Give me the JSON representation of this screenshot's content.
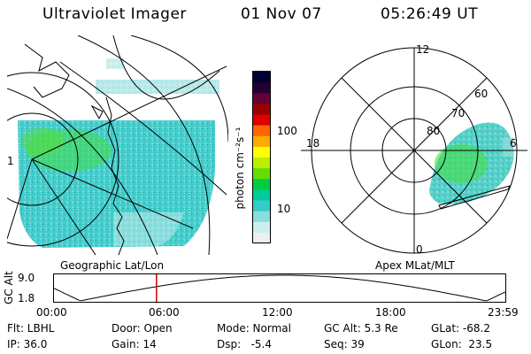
{
  "header": {
    "instrument": "Ultraviolet Imager",
    "date": "01 Nov 07",
    "time": "05:26:49 UT"
  },
  "colors": {
    "background": "#ffffff",
    "ink": "#000000",
    "time_marker": "#cc0000",
    "emission_main": "#33cccc",
    "emission_core": "#33dd33",
    "emission_edge": "#99e0e0"
  },
  "geo_panel": {
    "label": "Geographic Lat/Lon",
    "edge_tick": "1"
  },
  "colorbar": {
    "unit_label": "photon cm⁻²s⁻¹",
    "ticks": [
      "100",
      "10"
    ],
    "scale": "log",
    "stops": [
      "#000033",
      "#220033",
      "#660033",
      "#990000",
      "#dd0000",
      "#ff6600",
      "#ffaa00",
      "#ffff00",
      "#bbee00",
      "#66dd00",
      "#00cc44",
      "#00cc99",
      "#33cccc",
      "#88dddd",
      "#cceeee",
      "#eeeeee"
    ]
  },
  "polar_panel": {
    "label": "Apex MLat/MLT",
    "mlt_labels": {
      "top": "12",
      "left": "18",
      "right": "6",
      "bottom": "0"
    },
    "lat_labels": [
      "80",
      "70",
      "60"
    ]
  },
  "alt_plot": {
    "ylabel": "GC Alt",
    "yticks": [
      "9.0",
      "1.8"
    ],
    "xticks": [
      "00:00",
      "06:00",
      "12:00",
      "18:00",
      "23:59"
    ],
    "current_time_h": 5.45
  },
  "status": {
    "row1": {
      "flt": "Flt: LBHL",
      "door": "Door: Open",
      "mode": "Mode: Normal",
      "gc_alt": "GC Alt: 5.3 Re",
      "glat": "GLat: -68.2"
    },
    "row2": {
      "ip": "IP: 36.0",
      "gain": "Gain: 14",
      "dsp": "Dsp:   -5.4",
      "seq": "Seq: 39",
      "glon": "GLon:  23.5"
    }
  }
}
